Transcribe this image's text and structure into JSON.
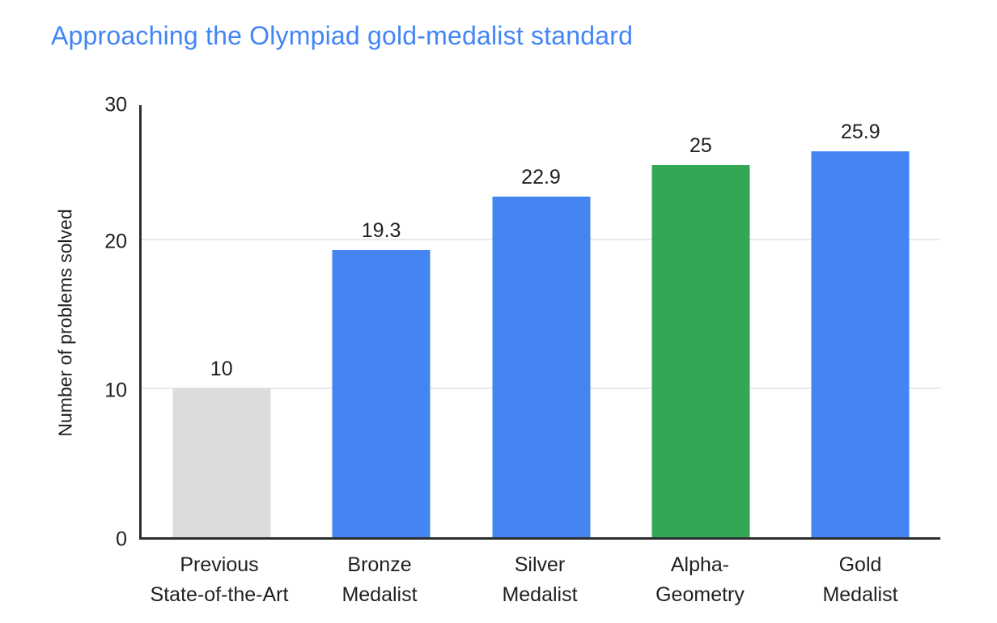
{
  "chart_data": {
    "type": "bar",
    "title": "Approaching the Olympiad gold-medalist standard",
    "xlabel": "",
    "ylabel": "Number of problems solved",
    "ylim": [
      0,
      30
    ],
    "yticks": [
      0,
      10,
      20,
      30
    ],
    "gridlines_at": [
      10,
      20
    ],
    "legend": "none",
    "categories": [
      "Previous State-of-the-Art",
      "Bronze Medalist",
      "Silver Medalist",
      "Alpha-Geometry",
      "Gold Medalist"
    ],
    "values": [
      10,
      19.3,
      22.9,
      25,
      25.9
    ],
    "bars": [
      {
        "label_lines": [
          "Previous",
          "State-of-the-Art"
        ],
        "value": 10,
        "value_label": "10",
        "color": "#DADCDE"
      },
      {
        "label_lines": [
          "Bronze",
          "Medalist"
        ],
        "value": 19.3,
        "value_label": "19.3",
        "color": "#4585F2"
      },
      {
        "label_lines": [
          "Silver",
          "Medalist"
        ],
        "value": 22.9,
        "value_label": "22.9",
        "color": "#4585F2"
      },
      {
        "label_lines": [
          "Alpha-",
          "Geometry"
        ],
        "value": 25,
        "value_label": "25",
        "color": "#33A754"
      },
      {
        "label_lines": [
          "Gold",
          "Medalist"
        ],
        "value": 25.9,
        "value_label": "25.9",
        "color": "#4585F2"
      }
    ],
    "colors": {
      "title_blue": "#4285F4",
      "highlight_blue": "#4585F2",
      "alphageometry_green": "#33A754",
      "baseline_gray": "#DADCDE",
      "axis": "#2d2e30",
      "gridline": "#e8e9ea",
      "text": "#1f2023",
      "background": "#ffffff"
    }
  }
}
